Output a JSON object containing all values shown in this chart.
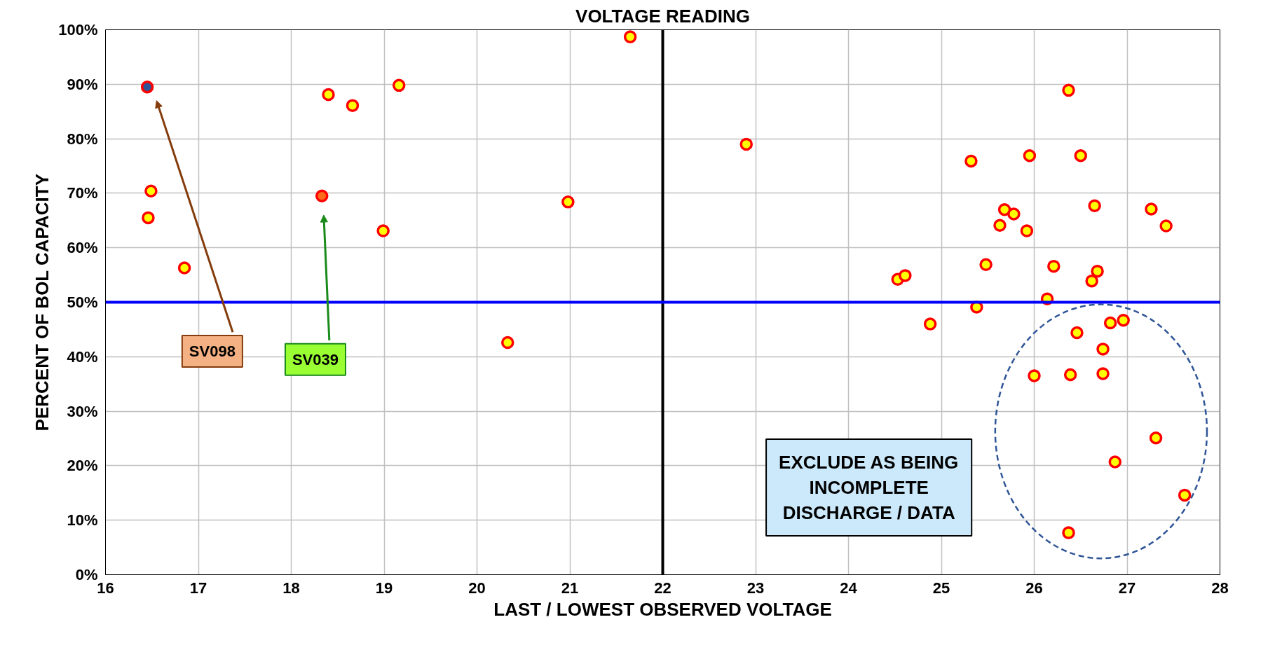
{
  "chart_data": {
    "type": "scatter",
    "title": "VOLTAGE READING",
    "xlabel": "LAST / LOWEST OBSERVED VOLTAGE",
    "ylabel": "PERCENT OF BOL CAPACITY",
    "series": [
      {
        "color": "#ffff00",
        "x": [
          16.49,
          16.46,
          16.85,
          18.4,
          18.66,
          18.99,
          19.16,
          20.33,
          20.98,
          21.65,
          22.9,
          25.32,
          25.95,
          26.37,
          26.5,
          25.63,
          25.68,
          25.78,
          25.92,
          26.65,
          27.26,
          27.42,
          25.48,
          26.21,
          26.68,
          26.62,
          24.53,
          24.61,
          26.14,
          25.38,
          24.88,
          26.46,
          26.82,
          26.96,
          26.74,
          26.0,
          26.39,
          26.74,
          27.31,
          26.87,
          27.62,
          26.37
        ],
        "values": [
          70.4,
          65.5,
          56.3,
          88.1,
          86.1,
          63.1,
          89.8,
          42.6,
          68.4,
          98.7,
          79.0,
          75.9,
          76.9,
          88.9,
          76.9,
          64.1,
          67.0,
          66.2,
          63.1,
          67.7,
          67.1,
          64.0,
          56.9,
          56.6,
          55.7,
          53.9,
          54.2,
          54.9,
          50.6,
          49.1,
          46.0,
          44.4,
          46.2,
          46.7,
          41.4,
          36.5,
          36.7,
          36.9,
          25.1,
          20.7,
          14.6,
          7.7
        ]
      },
      {
        "color": "#2f5597",
        "x": [
          16.45
        ],
        "values": [
          89.5
        ]
      },
      {
        "color": "#ff6a1a",
        "x": [
          18.33
        ],
        "values": [
          69.5
        ]
      }
    ],
    "marker": "circle",
    "xlim": [
      16,
      28
    ],
    "xticks": [
      16,
      17,
      18,
      19,
      20,
      21,
      22,
      23,
      24,
      25,
      26,
      27,
      28
    ],
    "ylim": [
      0,
      100
    ],
    "yticks": [
      {
        "value": 0,
        "label": "0%"
      },
      {
        "value": 10,
        "label": "10%"
      },
      {
        "value": 20,
        "label": "20%"
      },
      {
        "value": 30,
        "label": "30%"
      },
      {
        "value": 40,
        "label": "40%"
      },
      {
        "value": 50,
        "label": "50%"
      },
      {
        "value": 60,
        "label": "60%"
      },
      {
        "value": 70,
        "label": "70%"
      },
      {
        "value": 80,
        "label": "80%"
      },
      {
        "value": 90,
        "label": "90%"
      },
      {
        "value": 100,
        "label": "100%"
      }
    ],
    "grid": true,
    "ref_lines": [
      {
        "axis": "x",
        "value": 22,
        "color": "#000000"
      },
      {
        "axis": "y",
        "value": 50,
        "color": "#0000ff"
      }
    ],
    "annotations": [
      "SV098",
      "SV039",
      "EXCLUDE AS BEING INCOMPLETE DISCHARGE / DATA"
    ]
  }
}
